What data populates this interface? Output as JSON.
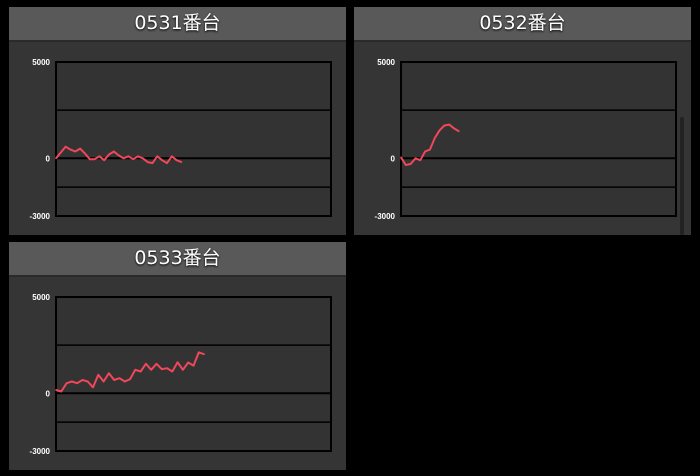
{
  "line_color": "#f0485a",
  "panels": [
    {
      "title": "0531番台"
    },
    {
      "title": "0532番台"
    },
    {
      "title": "0533番台"
    }
  ],
  "chart_data": [
    {
      "type": "line",
      "title": "0531番台",
      "ylim": [
        -3000,
        5000
      ],
      "yticks": [
        "5000",
        "0",
        "-3000"
      ],
      "grid_values": [
        5000,
        2500,
        0,
        -1500,
        -3000
      ],
      "xmax": 57,
      "values": [
        0,
        300,
        600,
        450,
        350,
        500,
        250,
        -50,
        -50,
        100,
        -100,
        200,
        350,
        150,
        0,
        100,
        -50,
        100,
        0,
        -200,
        -250,
        100,
        -100,
        -250,
        100,
        -100,
        -200
      ]
    },
    {
      "type": "line",
      "title": "0532番台",
      "ylim": [
        -3000,
        5000
      ],
      "yticks": [
        "5000",
        "0",
        "-3000"
      ],
      "grid_values": [
        5000,
        2500,
        0,
        -1500,
        -3000
      ],
      "xmax": 57,
      "values": [
        50,
        -350,
        -300,
        0,
        -100,
        350,
        450,
        1050,
        1450,
        1700,
        1750,
        1550,
        1400
      ]
    },
    {
      "type": "line",
      "title": "0533番台",
      "ylim": [
        -3000,
        5000
      ],
      "yticks": [
        "5000",
        "0",
        "-3000"
      ],
      "grid_values": [
        5000,
        2500,
        0,
        -1500,
        -3000
      ],
      "xmax": 52,
      "values": [
        170,
        90,
        520,
        610,
        520,
        690,
        610,
        310,
        960,
        610,
        1040,
        690,
        780,
        610,
        730,
        1220,
        1130,
        1530,
        1220,
        1530,
        1250,
        1300,
        1130,
        1610,
        1220,
        1600,
        1430,
        2120,
        2030
      ]
    }
  ]
}
